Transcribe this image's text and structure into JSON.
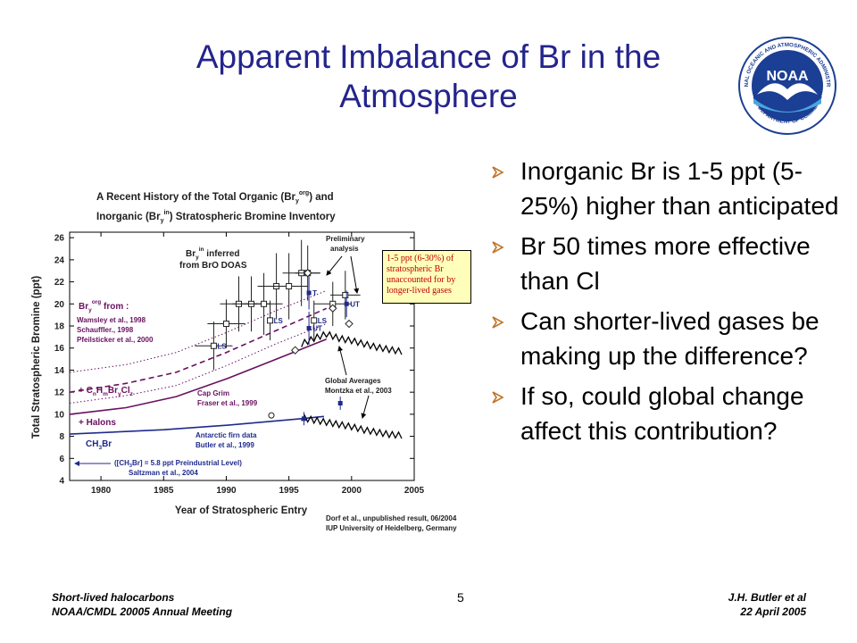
{
  "slide": {
    "title_line1": "Apparent Imbalance of Br in the",
    "title_line2": "Atmosphere",
    "logo_text": "NOAA",
    "logo_ring_top": "NATIONAL OCEANIC AND ATMOSPHERIC ADMINISTRATION",
    "logo_ring_bottom": "U.S. DEPARTMENT OF COMMERCE",
    "bullets": [
      "Inorganic Br is 1-5 ppt (5-25%) higher than anticipated",
      "Br 50 times more effective than Cl",
      "Can shorter-lived gases be making up the difference?",
      "If so, could global change affect this contribution?"
    ],
    "callout": "1-5 ppt (6-30%) of stratospheric Br unaccounted for by longer-lived gases",
    "footer_left_1": "Short-lived halocarbons",
    "footer_left_2": "NOAA/CMDL 20005 Annual Meeting",
    "page_number": "5",
    "footer_right_1": "J.H. Butler et al",
    "footer_right_2": "22 April 2005",
    "bullet_color": "#c0762a",
    "title_color": "#24248c"
  },
  "chart_data": {
    "type": "line",
    "title_line1": "A Recent History of the Total Organic (Br",
    "title_line1_sub": "y",
    "title_line1_sup": "org",
    "title_line1_end": ") and",
    "title_line2": "Inorganic (Br",
    "title_line2_sub": "y",
    "title_line2_sup": "in",
    "title_line2_end": ") Stratospheric Bromine Inventory",
    "xlabel": "Year of Stratospheric Entry",
    "ylabel": "Total Stratospheric Bromine (ppt)",
    "xlim": [
      1977.5,
      2005
    ],
    "ylim": [
      4,
      26.5
    ],
    "xticks": [
      1980,
      1985,
      1990,
      1995,
      2000,
      2005
    ],
    "yticks": [
      4,
      6,
      8,
      10,
      12,
      14,
      16,
      18,
      20,
      22,
      24,
      26
    ],
    "grid": false,
    "series": [
      {
        "label_key": "ch3br",
        "color": "#1f2a8c",
        "style": "solid",
        "x": [
          1977.5,
          1985,
          1990,
          1996,
          1997.8
        ],
        "y": [
          8.2,
          8.6,
          9.0,
          9.6,
          9.8
        ]
      },
      {
        "label_key": "halons",
        "color": "#6a1060",
        "style": "solid",
        "x": [
          1977.5,
          1982,
          1986,
          1990,
          1994,
          1998
        ],
        "y": [
          10.0,
          10.6,
          11.6,
          13.2,
          15.0,
          16.8
        ]
      },
      {
        "label_key": "shortlived",
        "color": "#6a1060",
        "style": "dashed",
        "x": [
          1977.5,
          1982,
          1986,
          1990,
          1994,
          1998
        ],
        "y": [
          12.0,
          12.8,
          13.8,
          15.6,
          17.6,
          19.6
        ]
      },
      {
        "label_key": "dotted_upper",
        "color": "#6a1060",
        "style": "dotted",
        "x": [
          1977.5,
          1982,
          1986,
          1990,
          1994,
          1998
        ],
        "y": [
          13.8,
          14.5,
          15.6,
          17.4,
          19.4,
          21.2
        ]
      },
      {
        "label_key": "dotted_lower",
        "color": "#6a1060",
        "style": "dotted",
        "x": [
          1977.5,
          1982,
          1986,
          1990,
          1994,
          1998
        ],
        "y": [
          11.0,
          11.7,
          12.6,
          14.4,
          16.4,
          18.2
        ]
      }
    ],
    "projection_upper": {
      "color": "#000000",
      "x": [
        1996,
        1997,
        1998,
        1999,
        2000,
        2001,
        2002,
        2003,
        2004
      ],
      "y": [
        16.3,
        16.8,
        17.2,
        16.8,
        16.6,
        16.3,
        16.0,
        15.8,
        15.6
      ]
    },
    "projection_lower": {
      "color": "#000000",
      "x": [
        1996,
        1997,
        1998,
        1999,
        2000,
        2001,
        2002,
        2003,
        2004
      ],
      "y": [
        9.6,
        9.4,
        9.2,
        9.0,
        8.8,
        8.5,
        8.3,
        8.1,
        8.0
      ]
    },
    "bry_points": [
      {
        "x": 1989,
        "y": 16.2,
        "xerr": 1.5,
        "yerr": 2.2,
        "label": "LS"
      },
      {
        "x": 1990,
        "y": 18.2,
        "xerr": 1.5,
        "yerr": 2.2,
        "label": ""
      },
      {
        "x": 1991,
        "y": 20.0,
        "xerr": 1.5,
        "yerr": 2.5,
        "label": ""
      },
      {
        "x": 1992,
        "y": 20.0,
        "xerr": 1.5,
        "yerr": 2.5,
        "label": ""
      },
      {
        "x": 1993,
        "y": 20.0,
        "xerr": 1.5,
        "yerr": 2.8,
        "label": ""
      },
      {
        "x": 1994,
        "y": 21.6,
        "xerr": 1.5,
        "yerr": 3.0,
        "label": ""
      },
      {
        "x": 1995,
        "y": 21.6,
        "xerr": 1.5,
        "yerr": 3.0,
        "label": ""
      },
      {
        "x": 1993.5,
        "y": 18.5,
        "xerr": 0,
        "yerr": 1.8,
        "label": "LS"
      },
      {
        "x": 1996,
        "y": 22.8,
        "xerr": 1.5,
        "yerr": 3.0,
        "label": ""
      },
      {
        "x": 1996.5,
        "y": 22.8,
        "xerr": 1.0,
        "yerr": 2.5,
        "label": ""
      },
      {
        "x": 1997,
        "y": 18.5,
        "xerr": 0,
        "yerr": 1.8,
        "label": "LS"
      },
      {
        "x": 1998.5,
        "y": 20.0,
        "xerr": 1.5,
        "yerr": 2.0,
        "label": ""
      },
      {
        "x": 1999.5,
        "y": 20.8,
        "xerr": 1.2,
        "yerr": 2.2,
        "label": ""
      }
    ],
    "filled_points": [
      {
        "x": 1996.6,
        "y": 21.0,
        "yerr": 1.5,
        "label": "T"
      },
      {
        "x": 1996.6,
        "y": 17.8,
        "yerr": 1.5,
        "label": "UT"
      },
      {
        "x": 1999.6,
        "y": 20.0,
        "yerr": 1.2,
        "label": "UT"
      },
      {
        "x": 1999.1,
        "y": 11.0,
        "yerr": 0.6,
        "label": ""
      },
      {
        "x": 1996.2,
        "y": 9.6,
        "yerr": 0.6,
        "label": ""
      }
    ],
    "diamonds": [
      {
        "x": 1995.5,
        "y": 15.8
      },
      {
        "x": 1998.5,
        "y": 19.6
      },
      {
        "x": 1999.8,
        "y": 18.2
      },
      {
        "x": 1996.5,
        "y": 22.8
      }
    ],
    "open_circles": [
      {
        "x": 1993.6,
        "y": 9.9
      }
    ],
    "annotations": {
      "inferred_line1": "Br",
      "inferred_sub": "y",
      "inferred_sup": "in",
      "inferred_line1_end": " inferred",
      "inferred_line2": "from BrO DOAS",
      "prelim_line1": "Preliminary",
      "prelim_line2": "analysis",
      "bryorg_head": "Br",
      "bryorg_sub": "y",
      "bryorg_sup": "org",
      "bryorg_end": " from :",
      "ref1": "Wamsley et al., 1998",
      "ref2": "Schauffler., 1998",
      "ref3": "Pfeilsticker et al., 2000",
      "cnhm_plus": "+ C",
      "cnhm_n": "n",
      "cnhm_h": "H",
      "cnhm_m": "m",
      "cnhm_br": "Br",
      "cnhm_y": "y",
      "cnhm_cl": "Cl",
      "cnhm_z": "z",
      "halons": "+ Halons",
      "ch3br_a": "CH",
      "ch3br_3": "3",
      "ch3br_b": "Br",
      "capgrim1": "Cap Grim",
      "capgrim2": "Fraser et al., 1999",
      "firn1": "Antarctic firn data",
      "firn2": "Butler et al., 1999",
      "pre1_a": "([CH",
      "pre1_3": "3",
      "pre1_b": "Br] = 5.8 ppt Preindustrial Level)",
      "pre2": "Saltzman et al., 2004",
      "global1": "Global Averages",
      "global2": "Montzka et al., 2003",
      "dorf1": "Dorf et al., unpublished result, 06/2004",
      "dorf2": "IUP University of Heidelberg, Germany"
    }
  }
}
